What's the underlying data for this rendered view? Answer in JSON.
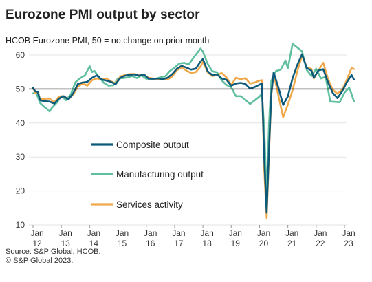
{
  "chart_data": {
    "type": "line",
    "title": "Eurozone PMI output by sector",
    "subtitle": "HCOB Eurozone PMI, 50 = no change on prior month",
    "reference_line": 50,
    "ylim": [
      10,
      60
    ],
    "y_ticks": [
      10,
      20,
      30,
      40,
      50,
      60
    ],
    "x_ticks": [
      {
        "top": "Jan",
        "bottom": "12"
      },
      {
        "top": "Jan",
        "bottom": "13"
      },
      {
        "top": "Jan",
        "bottom": "14"
      },
      {
        "top": "Jan",
        "bottom": "15"
      },
      {
        "top": "Jan",
        "bottom": "16"
      },
      {
        "top": "Jan",
        "bottom": "17"
      },
      {
        "top": "Jan",
        "bottom": "18"
      },
      {
        "top": "Jan",
        "bottom": "19"
      },
      {
        "top": "Jan",
        "bottom": "20"
      },
      {
        "top": "Jan",
        "bottom": "21"
      },
      {
        "top": "Jan",
        "bottom": "22"
      },
      {
        "top": "Jan",
        "bottom": "23"
      }
    ],
    "legend_placement": "center-left",
    "series": [
      {
        "name": "Composite output",
        "color": "#0e5a7a",
        "points": [
          [
            "2012-01",
            50.3
          ],
          [
            "2012-02",
            49.3
          ],
          [
            "2012-03",
            49.1
          ],
          [
            "2012-04",
            46.7
          ],
          [
            "2012-06",
            46.4
          ],
          [
            "2012-08",
            46.3
          ],
          [
            "2012-10",
            45.7
          ],
          [
            "2012-12",
            47.2
          ],
          [
            "2013-02",
            47.9
          ],
          [
            "2013-04",
            46.9
          ],
          [
            "2013-06",
            48.7
          ],
          [
            "2013-08",
            51.5
          ],
          [
            "2013-10",
            51.9
          ],
          [
            "2013-12",
            52.1
          ],
          [
            "2014-02",
            53.3
          ],
          [
            "2014-04",
            54.0
          ],
          [
            "2014-06",
            52.8
          ],
          [
            "2014-08",
            52.5
          ],
          [
            "2014-10",
            52.1
          ],
          [
            "2014-12",
            51.4
          ],
          [
            "2015-02",
            53.3
          ],
          [
            "2015-04",
            53.9
          ],
          [
            "2015-06",
            54.2
          ],
          [
            "2015-08",
            54.3
          ],
          [
            "2015-10",
            53.9
          ],
          [
            "2015-12",
            54.3
          ],
          [
            "2016-02",
            53.0
          ],
          [
            "2016-04",
            53.0
          ],
          [
            "2016-06",
            53.1
          ],
          [
            "2016-08",
            52.9
          ],
          [
            "2016-10",
            53.3
          ],
          [
            "2016-12",
            54.4
          ],
          [
            "2017-02",
            56.0
          ],
          [
            "2017-04",
            56.8
          ],
          [
            "2017-06",
            56.3
          ],
          [
            "2017-08",
            55.7
          ],
          [
            "2017-10",
            56.0
          ],
          [
            "2017-12",
            58.1
          ],
          [
            "2018-01",
            58.8
          ],
          [
            "2018-03",
            55.2
          ],
          [
            "2018-05",
            54.1
          ],
          [
            "2018-07",
            54.3
          ],
          [
            "2018-09",
            53.1
          ],
          [
            "2018-11",
            52.7
          ],
          [
            "2019-01",
            51.0
          ],
          [
            "2019-03",
            51.6
          ],
          [
            "2019-05",
            51.8
          ],
          [
            "2019-07",
            51.5
          ],
          [
            "2019-09",
            50.1
          ],
          [
            "2019-11",
            50.6
          ],
          [
            "2020-01",
            51.3
          ],
          [
            "2020-02",
            51.6
          ],
          [
            "2020-03",
            29.7
          ],
          [
            "2020-04",
            13.6
          ],
          [
            "2020-05",
            31.9
          ],
          [
            "2020-06",
            48.5
          ],
          [
            "2020-07",
            54.9
          ],
          [
            "2020-09",
            50.4
          ],
          [
            "2020-11",
            45.3
          ],
          [
            "2021-01",
            47.8
          ],
          [
            "2021-03",
            53.2
          ],
          [
            "2021-05",
            57.1
          ],
          [
            "2021-07",
            60.2
          ],
          [
            "2021-09",
            56.2
          ],
          [
            "2021-11",
            55.4
          ],
          [
            "2021-12",
            53.3
          ],
          [
            "2022-02",
            55.5
          ],
          [
            "2022-04",
            55.8
          ],
          [
            "2022-06",
            52.0
          ],
          [
            "2022-08",
            48.9
          ],
          [
            "2022-10",
            47.3
          ],
          [
            "2022-12",
            49.3
          ],
          [
            "2023-02",
            52.0
          ],
          [
            "2023-04",
            54.1
          ],
          [
            "2023-05",
            52.8
          ]
        ]
      },
      {
        "name": "Manufacturing output",
        "color": "#5fbf9f",
        "points": [
          [
            "2012-01",
            48.7
          ],
          [
            "2012-02",
            49.0
          ],
          [
            "2012-03",
            47.7
          ],
          [
            "2012-04",
            45.9
          ],
          [
            "2012-06",
            44.6
          ],
          [
            "2012-07",
            44.1
          ],
          [
            "2012-08",
            43.4
          ],
          [
            "2012-09",
            44.5
          ],
          [
            "2012-11",
            45.9
          ],
          [
            "2013-01",
            47.9
          ],
          [
            "2013-03",
            46.7
          ],
          [
            "2013-05",
            48.4
          ],
          [
            "2013-07",
            52.0
          ],
          [
            "2013-09",
            53.2
          ],
          [
            "2013-11",
            54.0
          ],
          [
            "2014-01",
            56.7
          ],
          [
            "2014-02",
            55.0
          ],
          [
            "2014-03",
            55.3
          ],
          [
            "2014-05",
            53.5
          ],
          [
            "2014-07",
            51.8
          ],
          [
            "2014-09",
            51.0
          ],
          [
            "2014-11",
            51.1
          ],
          [
            "2015-01",
            53.1
          ],
          [
            "2015-03",
            53.2
          ],
          [
            "2015-05",
            53.4
          ],
          [
            "2015-07",
            53.8
          ],
          [
            "2015-09",
            53.2
          ],
          [
            "2015-11",
            54.0
          ],
          [
            "2016-01",
            53.0
          ],
          [
            "2016-03",
            53.1
          ],
          [
            "2016-05",
            52.9
          ],
          [
            "2016-07",
            53.5
          ],
          [
            "2016-09",
            53.7
          ],
          [
            "2016-11",
            55.3
          ],
          [
            "2017-01",
            56.3
          ],
          [
            "2017-03",
            57.5
          ],
          [
            "2017-05",
            57.7
          ],
          [
            "2017-07",
            57.2
          ],
          [
            "2017-09",
            59.2
          ],
          [
            "2017-11",
            61.0
          ],
          [
            "2017-12",
            61.9
          ],
          [
            "2018-01",
            61.0
          ],
          [
            "2018-03",
            57.4
          ],
          [
            "2018-05",
            55.2
          ],
          [
            "2018-07",
            54.9
          ],
          [
            "2018-09",
            52.5
          ],
          [
            "2018-11",
            51.2
          ],
          [
            "2019-01",
            50.5
          ],
          [
            "2019-03",
            47.9
          ],
          [
            "2019-05",
            47.9
          ],
          [
            "2019-07",
            46.8
          ],
          [
            "2019-09",
            45.6
          ],
          [
            "2019-11",
            46.7
          ],
          [
            "2020-01",
            47.8
          ],
          [
            "2020-02",
            48.7
          ],
          [
            "2020-03",
            38.5
          ],
          [
            "2020-04",
            18.2
          ],
          [
            "2020-05",
            39.5
          ],
          [
            "2020-06",
            52.4
          ],
          [
            "2020-08",
            55.3
          ],
          [
            "2020-10",
            55.7
          ],
          [
            "2020-12",
            58.4
          ],
          [
            "2021-01",
            56.1
          ],
          [
            "2021-03",
            63.3
          ],
          [
            "2021-05",
            62.2
          ],
          [
            "2021-07",
            61.1
          ],
          [
            "2021-09",
            55.6
          ],
          [
            "2021-11",
            53.8
          ],
          [
            "2022-01",
            56.0
          ],
          [
            "2022-03",
            53.1
          ],
          [
            "2022-05",
            53.6
          ],
          [
            "2022-07",
            46.3
          ],
          [
            "2022-09",
            46.2
          ],
          [
            "2022-11",
            46.1
          ],
          [
            "2023-01",
            48.9
          ],
          [
            "2023-03",
            50.4
          ],
          [
            "2023-04",
            48.5
          ],
          [
            "2023-05",
            46.4
          ]
        ]
      },
      {
        "name": "Services activity",
        "color": "#f0a84b",
        "points": [
          [
            "2012-01",
            50.4
          ],
          [
            "2012-02",
            48.8
          ],
          [
            "2012-03",
            49.2
          ],
          [
            "2012-04",
            46.9
          ],
          [
            "2012-06",
            47.1
          ],
          [
            "2012-08",
            47.2
          ],
          [
            "2012-10",
            46.0
          ],
          [
            "2012-12",
            47.8
          ],
          [
            "2013-02",
            47.9
          ],
          [
            "2013-04",
            47.0
          ],
          [
            "2013-06",
            48.3
          ],
          [
            "2013-08",
            50.7
          ],
          [
            "2013-10",
            51.6
          ],
          [
            "2013-12",
            51.0
          ],
          [
            "2014-02",
            52.6
          ],
          [
            "2014-04",
            53.1
          ],
          [
            "2014-06",
            52.8
          ],
          [
            "2014-08",
            53.1
          ],
          [
            "2014-10",
            52.3
          ],
          [
            "2014-12",
            51.6
          ],
          [
            "2015-02",
            53.7
          ],
          [
            "2015-04",
            54.1
          ],
          [
            "2015-06",
            54.4
          ],
          [
            "2015-08",
            54.4
          ],
          [
            "2015-10",
            54.1
          ],
          [
            "2015-12",
            54.2
          ],
          [
            "2016-02",
            53.3
          ],
          [
            "2016-04",
            53.1
          ],
          [
            "2016-06",
            52.8
          ],
          [
            "2016-08",
            52.8
          ],
          [
            "2016-10",
            52.8
          ],
          [
            "2016-12",
            53.7
          ],
          [
            "2017-02",
            55.5
          ],
          [
            "2017-04",
            56.4
          ],
          [
            "2017-06",
            55.4
          ],
          [
            "2017-08",
            54.7
          ],
          [
            "2017-10",
            55.0
          ],
          [
            "2017-12",
            56.6
          ],
          [
            "2018-01",
            58.0
          ],
          [
            "2018-03",
            54.9
          ],
          [
            "2018-05",
            53.8
          ],
          [
            "2018-07",
            54.2
          ],
          [
            "2018-09",
            54.7
          ],
          [
            "2018-11",
            53.4
          ],
          [
            "2019-01",
            51.2
          ],
          [
            "2019-03",
            53.3
          ],
          [
            "2019-05",
            52.9
          ],
          [
            "2019-07",
            53.2
          ],
          [
            "2019-09",
            51.6
          ],
          [
            "2019-11",
            51.9
          ],
          [
            "2020-01",
            52.5
          ],
          [
            "2020-02",
            52.6
          ],
          [
            "2020-03",
            26.4
          ],
          [
            "2020-04",
            12.0
          ],
          [
            "2020-05",
            30.5
          ],
          [
            "2020-06",
            48.3
          ],
          [
            "2020-07",
            54.7
          ],
          [
            "2020-09",
            48.0
          ],
          [
            "2020-11",
            41.7
          ],
          [
            "2021-01",
            45.4
          ],
          [
            "2021-03",
            49.6
          ],
          [
            "2021-05",
            55.2
          ],
          [
            "2021-07",
            59.8
          ],
          [
            "2021-09",
            56.4
          ],
          [
            "2021-11",
            55.9
          ],
          [
            "2021-12",
            53.1
          ],
          [
            "2022-02",
            55.5
          ],
          [
            "2022-04",
            57.7
          ],
          [
            "2022-06",
            53.0
          ],
          [
            "2022-08",
            49.8
          ],
          [
            "2022-10",
            48.6
          ],
          [
            "2022-12",
            49.8
          ],
          [
            "2023-02",
            52.7
          ],
          [
            "2023-04",
            56.2
          ],
          [
            "2023-05",
            55.9
          ]
        ]
      }
    ]
  },
  "footer": {
    "source": "Source: S&P Global, HCOB.",
    "copyright": "© S&P Global 2023."
  }
}
